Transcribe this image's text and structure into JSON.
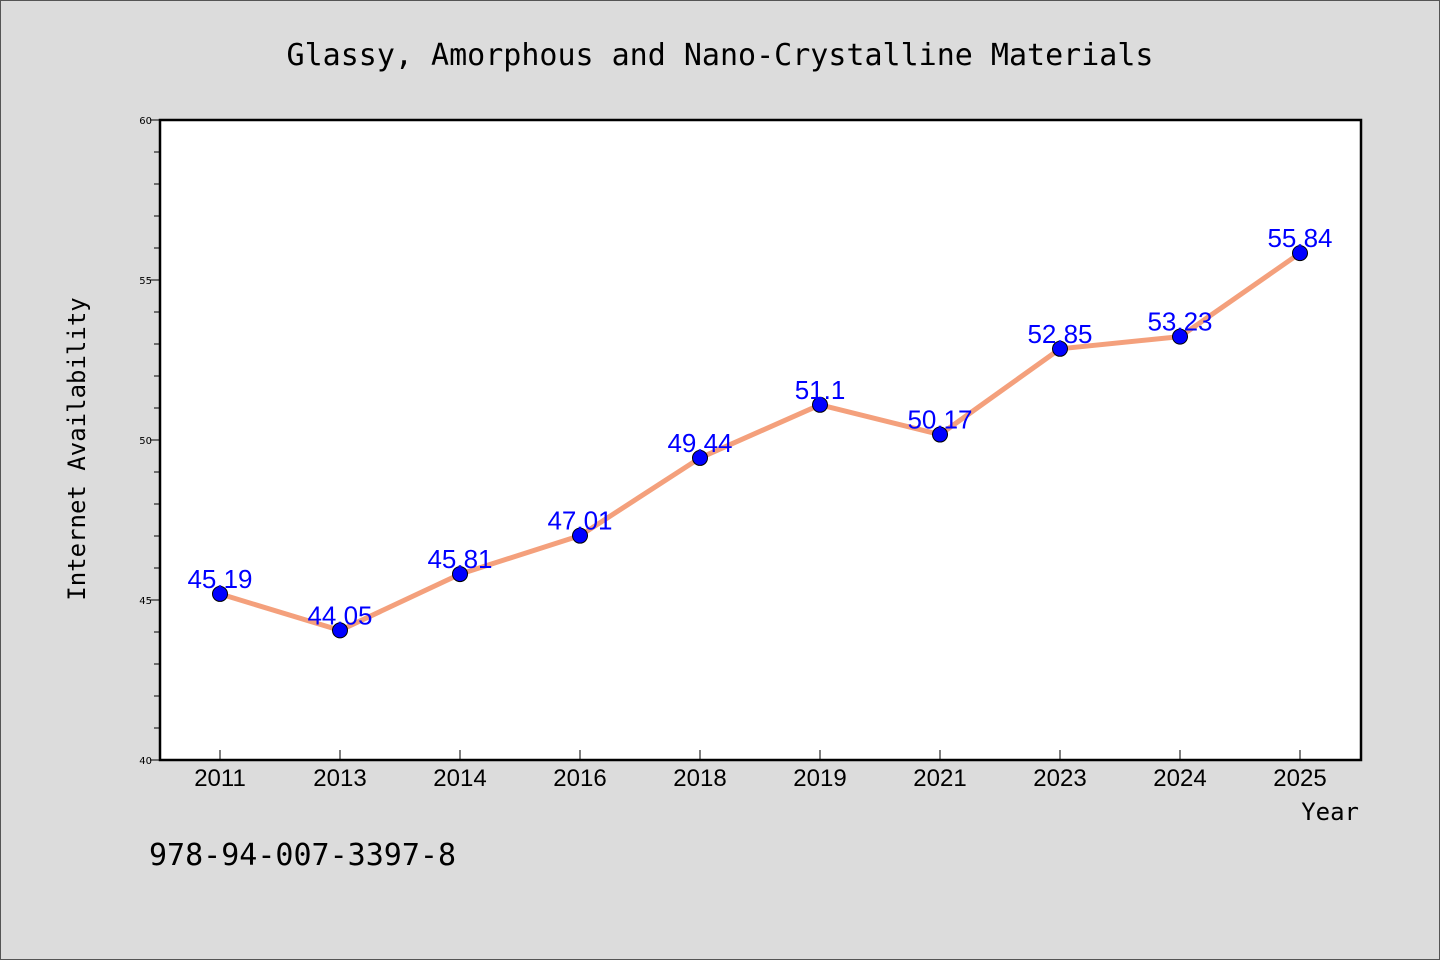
{
  "chart_data": {
    "type": "line",
    "title": "Glassy, Amorphous and Nano-Crystalline Materials",
    "xlabel": "Year",
    "ylabel": "Internet Availability",
    "categories": [
      "2011",
      "2013",
      "2014",
      "2016",
      "2018",
      "2019",
      "2021",
      "2023",
      "2024",
      "2025"
    ],
    "series": [
      {
        "values": [
          45.19,
          44.05,
          45.81,
          47.01,
          49.44,
          51.1,
          50.17,
          52.85,
          53.23,
          55.84
        ],
        "data_labels": [
          "45.19",
          "44.05",
          "45.81",
          "47.01",
          "49.44",
          "51.1",
          "50.17",
          "52.85",
          "53.23",
          "55.84"
        ]
      }
    ],
    "ylim": [
      40,
      60
    ],
    "yticks": [
      "40",
      "45",
      "50",
      "55",
      "60"
    ],
    "grid": false,
    "legend": "none",
    "colors": {
      "line": "#f4a07c",
      "marker": "#0000ff",
      "data_label": "#0000ff",
      "background": "#dcdcdc",
      "plot_background": "#ffffff"
    }
  },
  "footer": {
    "code": "978-94-007-3397-8"
  }
}
